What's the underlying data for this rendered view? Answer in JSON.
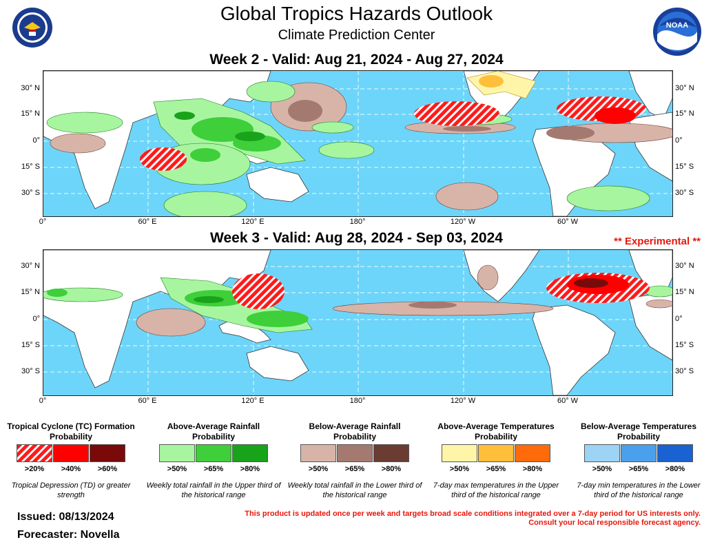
{
  "header": {
    "title": "Global Tropics Hazards Outlook",
    "subtitle": "Climate Prediction Center"
  },
  "week2": {
    "label": "Week 2 - Valid: Aug 21, 2024 - Aug 27, 2024"
  },
  "week3": {
    "label": "Week 3 - Valid: Aug 28, 2024 - Sep 03, 2024",
    "experimental": "** Experimental **"
  },
  "axes": {
    "lat_labels": [
      "30° N",
      "15° N",
      "0°",
      "15° S",
      "30° S"
    ],
    "lon_labels": [
      "0°",
      "60° E",
      "120° E",
      "180°",
      "120° W",
      "60° W"
    ]
  },
  "legend": [
    {
      "title": "Tropical Cyclone (TC) Formation Probability",
      "levels": [
        ">20%",
        ">40%",
        ">60%"
      ],
      "colors": [
        "#ff1a1a",
        "#ff0000",
        "#7a0a0a"
      ],
      "note": "Tropical Depression (TD) or greater strength"
    },
    {
      "title": "Above-Average Rainfall Probability",
      "levels": [
        ">50%",
        ">65%",
        ">80%"
      ],
      "colors": [
        "#a8f5a0",
        "#3ecf3a",
        "#18a31a"
      ],
      "note": "Weekly total rainfall in the Upper third of the historical range"
    },
    {
      "title": "Below-Average Rainfall Probability",
      "levels": [
        ">50%",
        ">65%",
        ">80%"
      ],
      "colors": [
        "#d8b4a8",
        "#a47a70",
        "#6a3c32"
      ],
      "note": "Weekly total rainfall in the Lower third of the historical range"
    },
    {
      "title": "Above-Average Temperatures Probability",
      "levels": [
        ">50%",
        ">65%",
        ">80%"
      ],
      "colors": [
        "#fff5a8",
        "#ffbf3a",
        "#ff6a0a"
      ],
      "note": "7-day max temperatures in the Upper third of the historical range"
    },
    {
      "title": "Below-Average Temperatures Probability",
      "levels": [
        ">50%",
        ">65%",
        ">80%"
      ],
      "colors": [
        "#9dd3f5",
        "#4aa0ec",
        "#1863d1"
      ],
      "note": "7-day min temperatures in the Lower third of the historical range"
    }
  ],
  "footer": {
    "issued": "Issued: 08/13/2024",
    "forecaster": "Forecaster: Novella",
    "disclaimer_1": "This product is updated once per week and targets broad scale conditions integrated over a 7-day period for US interests only.",
    "disclaimer_2": "Consult your local responsible forecast agency."
  },
  "colors": {
    "ocean": "#6dd5f9",
    "land": "#ffffff",
    "experimental": "#e8170c"
  },
  "icons": [
    "department-of-commerce-seal-icon",
    "noaa-logo-icon"
  ]
}
